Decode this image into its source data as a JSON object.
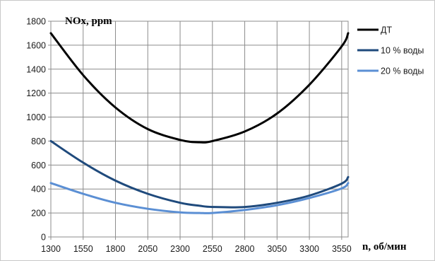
{
  "chart_data": {
    "type": "line",
    "ylabel": "NOx, ppm",
    "xlabel": "n, об/мин",
    "xlim": [
      1300,
      3600
    ],
    "ylim": [
      0,
      1800
    ],
    "x_ticks": [
      "1300",
      "1550",
      "1800",
      "2050",
      "2300",
      "2550",
      "2800",
      "3050",
      "3300",
      "3550"
    ],
    "y_ticks": [
      "0",
      "200",
      "400",
      "600",
      "800",
      "1000",
      "1200",
      "1400",
      "1600",
      "1800"
    ],
    "grid": true,
    "legend_position": "right",
    "x": [
      1300,
      1550,
      1800,
      2050,
      2300,
      2450,
      2550,
      2800,
      3050,
      3300,
      3550,
      3600
    ],
    "series": [
      {
        "name": "ДТ",
        "color": "#000000",
        "values": [
          1700,
          1350,
          1080,
          900,
          810,
          790,
          800,
          880,
          1030,
          1270,
          1590,
          1700
        ]
      },
      {
        "name": "10 % воды",
        "color": "#1f4a7c",
        "values": [
          800,
          620,
          470,
          360,
          285,
          260,
          250,
          250,
          285,
          345,
          445,
          500
        ]
      },
      {
        "name": "20 % воды",
        "color": "#5b8fd4",
        "values": [
          450,
          360,
          285,
          235,
          205,
          200,
          200,
          225,
          265,
          325,
          405,
          450
        ]
      }
    ]
  }
}
